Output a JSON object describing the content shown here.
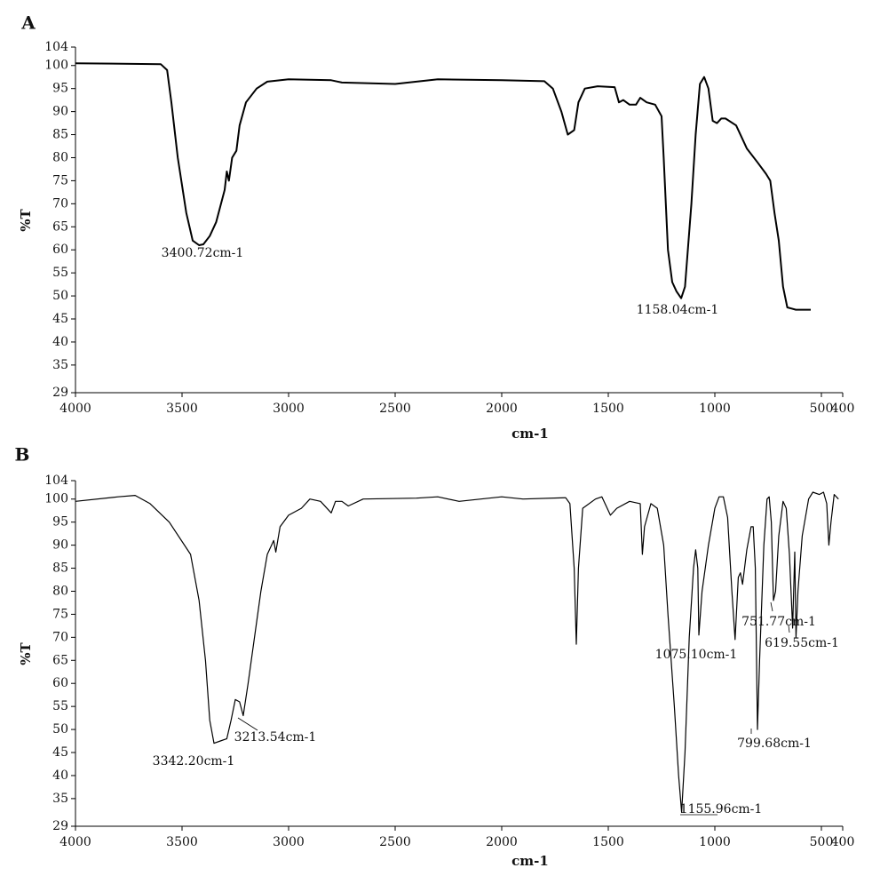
{
  "chart_data": [
    {
      "type": "line",
      "panel": "A",
      "xlabel": "cm-1",
      "ylabel": "%T",
      "xlim": [
        4000,
        400
      ],
      "ylim": [
        29,
        104
      ],
      "xticks": [
        4000,
        3500,
        3000,
        2500,
        2000,
        1500,
        1000,
        500,
        400
      ],
      "yticks": [
        29,
        35,
        40,
        45,
        50,
        55,
        60,
        65,
        70,
        75,
        80,
        85,
        90,
        95,
        100,
        104
      ],
      "annotations": [
        "3400.72cm-1",
        "1158.04cm-1"
      ],
      "series": [
        {
          "color": "#000000",
          "x": [
            4000,
            3600,
            3570,
            3550,
            3520,
            3480,
            3450,
            3420,
            3400,
            3370,
            3340,
            3300,
            3290,
            3280,
            3265,
            3245,
            3230,
            3200,
            3150,
            3100,
            3000,
            2800,
            2750,
            2500,
            2400,
            2300,
            2000,
            1800,
            1760,
            1720,
            1690,
            1660,
            1640,
            1610,
            1550,
            1470,
            1450,
            1430,
            1400,
            1370,
            1350,
            1320,
            1280,
            1250,
            1240,
            1220,
            1200,
            1180,
            1158,
            1140,
            1110,
            1090,
            1070,
            1050,
            1030,
            1010,
            990,
            970,
            950,
            900,
            870,
            850,
            800,
            760,
            740,
            720,
            700,
            680,
            660,
            620,
            550
          ],
          "values": [
            100.5,
            100.3,
            99,
            92,
            80,
            68,
            62,
            61,
            61.2,
            63,
            66,
            73,
            77,
            75,
            80,
            81.5,
            87,
            92,
            95,
            96.5,
            97,
            96.8,
            96.3,
            96,
            96.5,
            97,
            96.8,
            96.6,
            95,
            90,
            85,
            86,
            92,
            95,
            95.5,
            95.3,
            92,
            92.5,
            91.5,
            91.5,
            93,
            92,
            91.5,
            89,
            80,
            60,
            53,
            51,
            49.5,
            52,
            70,
            85,
            96,
            97.5,
            95,
            88,
            87.5,
            88.5,
            88.5,
            87,
            84,
            82,
            79,
            76.5,
            75,
            68,
            62,
            52,
            47.5,
            47,
            47
          ]
        }
      ]
    },
    {
      "type": "line",
      "panel": "B",
      "xlabel": "cm-1",
      "ylabel": "%T",
      "xlim": [
        4000,
        400
      ],
      "ylim": [
        29,
        104
      ],
      "xticks": [
        4000,
        3500,
        3000,
        2500,
        2000,
        1500,
        1000,
        500,
        400
      ],
      "yticks": [
        29,
        35,
        40,
        45,
        50,
        55,
        60,
        65,
        70,
        75,
        80,
        85,
        90,
        95,
        100,
        104
      ],
      "annotations": [
        "3342.20cm-1",
        "3213.54cm-1",
        "1155.96cm-1",
        "1075.10cm-1",
        "751.77cm-1",
        "619.55cm-1",
        "799.68cm-1"
      ],
      "series": [
        {
          "color": "#000000",
          "x": [
            4000,
            3800,
            3720,
            3650,
            3560,
            3460,
            3420,
            3390,
            3370,
            3350,
            3320,
            3290,
            3270,
            3250,
            3230,
            3213,
            3190,
            3160,
            3130,
            3100,
            3080,
            3070,
            3060,
            3040,
            3000,
            2940,
            2900,
            2850,
            2800,
            2780,
            2750,
            2720,
            2650,
            2400,
            2300,
            2200,
            2000,
            1900,
            1700,
            1680,
            1660,
            1650,
            1640,
            1620,
            1560,
            1530,
            1510,
            1490,
            1460,
            1400,
            1350,
            1340,
            1330,
            1300,
            1270,
            1240,
            1220,
            1190,
            1170,
            1156,
            1140,
            1120,
            1100,
            1090,
            1080,
            1075,
            1060,
            1030,
            1000,
            980,
            960,
            940,
            920,
            905,
            890,
            880,
            870,
            850,
            830,
            820,
            810,
            800,
            790,
            770,
            755,
            745,
            735,
            725,
            715,
            700,
            680,
            665,
            650,
            635,
            625,
            619,
            610,
            590,
            560,
            540,
            510,
            490,
            475,
            465,
            455,
            440,
            420
          ],
          "values": [
            99.5,
            100.5,
            100.8,
            99,
            95,
            88,
            78,
            65,
            52,
            47,
            47.5,
            48,
            52,
            56.5,
            56,
            53,
            60,
            70,
            80,
            88,
            90,
            91,
            88.5,
            94,
            96.5,
            98,
            100,
            99.5,
            97,
            99.5,
            99.5,
            98.5,
            100,
            100.2,
            100.5,
            99.5,
            100.5,
            100,
            100.3,
            99,
            85,
            68.5,
            85,
            98,
            100,
            100.5,
            98.5,
            96.5,
            98,
            99.5,
            99,
            88,
            94,
            99,
            98,
            90,
            75,
            55,
            40,
            32,
            45,
            70,
            85,
            89,
            85,
            70.5,
            80,
            90,
            98,
            100.5,
            100.5,
            96,
            80,
            69.5,
            83,
            84,
            81.5,
            89,
            94,
            94,
            85,
            50,
            65,
            90,
            100,
            100.5,
            95,
            78,
            80,
            92,
            99.5,
            98,
            88,
            72,
            88.5,
            70,
            80,
            92,
            100,
            101.5,
            101,
            101.5,
            99,
            90,
            95,
            101,
            100
          ]
        }
      ]
    }
  ]
}
